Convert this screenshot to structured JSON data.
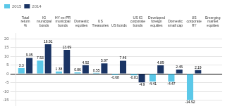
{
  "chart_data": {
    "type": "bar",
    "categories": [
      "Total\nreturn\n%",
      "IG\nmunicipal\nbonds",
      "HY ex-PR\nmunicipal\nbonds",
      "Domestic\nequities",
      "US\nTreasuries",
      "US bonds",
      "US IG\ncorporate\nbonds",
      "Developed\nforeign\nequities",
      "Domestic\nsmall cap",
      "US\ncorporate\nHY",
      "Emerging\nmarket\nequities"
    ],
    "series": [
      {
        "name": "2015",
        "color": "#5bc8e8",
        "values": [
          3.3,
          7.53,
          1.38,
          0.86,
          0.55,
          -0.68,
          -0.81,
          -4.41,
          -4.47,
          -14.92,
          null
        ]
      },
      {
        "name": "2014",
        "color": "#1a3464",
        "values": [
          9.05,
          16.91,
          13.69,
          4.92,
          5.97,
          7.46,
          -4.9,
          4.89,
          2.45,
          2.19,
          null
        ]
      }
    ],
    "ylim": [
      -18,
      23
    ],
    "yticks": [
      -15,
      -10,
      -5,
      0,
      5,
      10,
      15,
      20
    ],
    "grid": true,
    "legend": "upper left",
    "data_labels": true
  }
}
